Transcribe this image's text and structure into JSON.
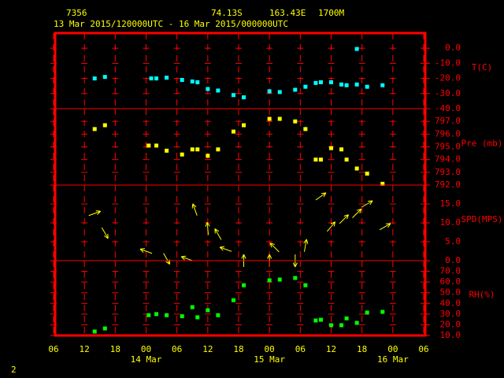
{
  "header": {
    "station": "7356",
    "lat": "74.13S",
    "lon": "163.43E",
    "elevation": "1700M",
    "period": "13 Mar 2015/120000UTC - 16 Mar 2015/000000UTC"
  },
  "footer": "2",
  "x_axis": {
    "xlim": [
      6,
      78
    ],
    "xticks": [
      {
        "value": 6,
        "label": "06"
      },
      {
        "value": 12,
        "label": "12"
      },
      {
        "value": 18,
        "label": "18"
      },
      {
        "value": 24,
        "label": "00"
      },
      {
        "value": 30,
        "label": "06"
      },
      {
        "value": 36,
        "label": "12"
      },
      {
        "value": 42,
        "label": "18"
      },
      {
        "value": 48,
        "label": "00"
      },
      {
        "value": 54,
        "label": "06"
      },
      {
        "value": 60,
        "label": "12"
      },
      {
        "value": 66,
        "label": "18"
      },
      {
        "value": 72,
        "label": "00"
      },
      {
        "value": 78,
        "label": "06"
      }
    ],
    "date_labels": [
      {
        "value": 24,
        "label": "14 Mar"
      },
      {
        "value": 48,
        "label": "15 Mar"
      },
      {
        "value": 72,
        "label": "16 Mar"
      }
    ]
  },
  "chart_data": [
    {
      "type": "scatter",
      "label": "T(C)",
      "color": "#00ffff",
      "x": [
        14,
        16,
        25,
        26,
        28,
        31,
        33,
        34,
        36,
        38,
        41,
        43,
        48,
        50,
        53,
        55,
        57,
        58,
        60,
        62,
        63,
        65,
        65,
        67,
        70
      ],
      "values": [
        -20,
        -19,
        -20,
        -20,
        -19.5,
        -21,
        -22,
        -22.5,
        -27,
        -28,
        -31,
        -32.5,
        -28.5,
        -29,
        -27.5,
        -25.5,
        -23,
        -22.5,
        -22.5,
        -24,
        -24.5,
        -24,
        -0.5,
        -25.5,
        -24.5
      ],
      "ylim": [
        -40,
        10
      ],
      "yticks": [
        {
          "value": 0,
          "label": "0.0"
        },
        {
          "value": -10,
          "label": "-10.0"
        },
        {
          "value": -20,
          "label": "-20.0"
        },
        {
          "value": -30,
          "label": "-30.0"
        },
        {
          "value": -40,
          "label": "-40.0"
        }
      ]
    },
    {
      "type": "scatter",
      "label": "Pre (mb)",
      "color": "#ffff00",
      "x": [
        14,
        16,
        24.5,
        26,
        28,
        31,
        33,
        34,
        36,
        38,
        41,
        43,
        48,
        50,
        53,
        55,
        57,
        58,
        60,
        62,
        63,
        65,
        67,
        70
      ],
      "values": [
        796.4,
        796.7,
        795.1,
        795.1,
        794.7,
        794.4,
        794.8,
        794.8,
        794.3,
        794.8,
        796.2,
        796.7,
        797.2,
        797.2,
        797.0,
        796.4,
        794.0,
        794.0,
        794.9,
        794.8,
        794.0,
        793.3,
        792.9,
        792.1
      ],
      "ylim": [
        792,
        798
      ],
      "yticks": [
        {
          "value": 797,
          "label": "797.0"
        },
        {
          "value": 796,
          "label": "796.0"
        },
        {
          "value": 795,
          "label": "795.0"
        },
        {
          "value": 794,
          "label": "794.0"
        },
        {
          "value": 793,
          "label": "793.0"
        },
        {
          "value": 792,
          "label": "792.0"
        }
      ]
    },
    {
      "type": "wind",
      "label": "SPD(MPS)",
      "color": "#ffff00",
      "x": [
        14,
        16,
        24,
        28,
        32,
        33.5,
        36,
        38,
        39.5,
        43,
        48,
        49,
        53,
        55,
        58,
        60,
        62.5,
        65,
        67,
        70.5
      ],
      "values": [
        12.5,
        7.3,
        2.5,
        0.5,
        0.5,
        13.5,
        8.5,
        7,
        3,
        0,
        0,
        3.5,
        0,
        4,
        17,
        9,
        11,
        12.5,
        15,
        9
      ],
      "directions": [
        20,
        -60,
        160,
        -60,
        160,
        110,
        95,
        120,
        160,
        90,
        90,
        135,
        -90,
        80,
        35,
        50,
        45,
        45,
        30,
        30
      ],
      "ylim": [
        0,
        20
      ],
      "yticks": [
        {
          "value": 15,
          "label": "15.0"
        },
        {
          "value": 10,
          "label": "10.0"
        },
        {
          "value": 5,
          "label": "5.0"
        },
        {
          "value": 0,
          "label": "0.0"
        }
      ]
    },
    {
      "type": "scatter",
      "label": "RH(%)",
      "color": "#00ff00",
      "x": [
        14,
        16,
        24.5,
        26,
        28,
        31,
        33,
        34,
        36,
        38,
        41,
        43,
        48,
        50,
        53,
        55,
        57,
        58,
        60,
        62,
        63,
        65,
        67,
        70
      ],
      "values": [
        13.7,
        16.6,
        29,
        30,
        29,
        28,
        36.5,
        27,
        33.6,
        29,
        43,
        57,
        61.6,
        62.3,
        63.8,
        57,
        24,
        24.7,
        19.6,
        19.6,
        26,
        21.8,
        31.4,
        32.1
      ],
      "ylim": [
        10,
        80
      ],
      "yticks": [
        {
          "value": 70,
          "label": "70.0"
        },
        {
          "value": 60,
          "label": "60.0"
        },
        {
          "value": 50,
          "label": "50.0"
        },
        {
          "value": 40,
          "label": "40.0"
        },
        {
          "value": 30,
          "label": "30.0"
        },
        {
          "value": 20,
          "label": "20.0"
        },
        {
          "value": 10,
          "label": "10.0"
        }
      ]
    }
  ]
}
